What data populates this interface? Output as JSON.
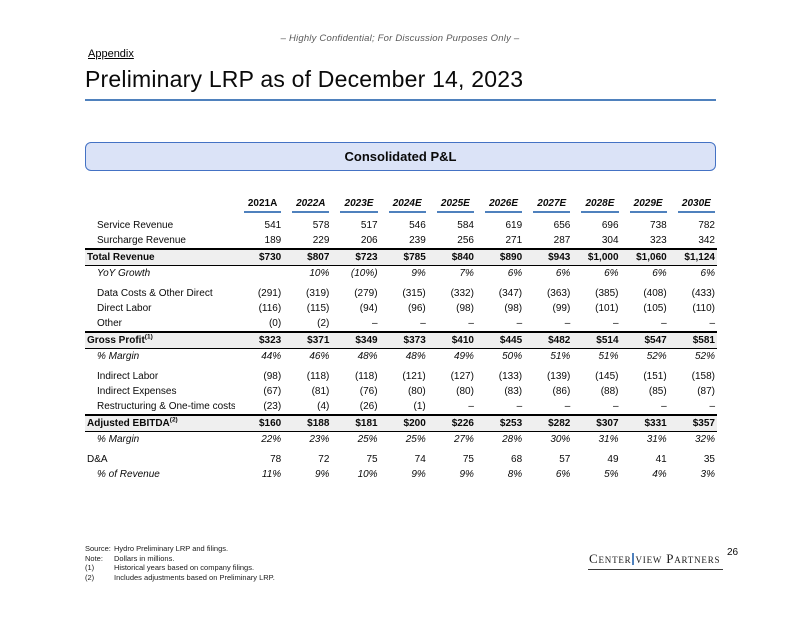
{
  "page": {
    "confidential_note": "– Highly Confidential; For Discussion Purposes Only –",
    "appendix_label": "Appendix",
    "title": "Preliminary LRP as of December 14, 2023",
    "section_box": "Consolidated P&L",
    "page_number": "26",
    "logo_part1": "Center",
    "logo_part2": "view Partners"
  },
  "colors": {
    "accent_blue": "#4f81bd",
    "box_border_blue": "#4472c4",
    "box_fill": "#dbe3f7",
    "total_row_gray": "#efefef"
  },
  "table": {
    "columns": [
      "2021A",
      "2022A",
      "2023E",
      "2024E",
      "2025E",
      "2026E",
      "2027E",
      "2028E",
      "2029E",
      "2030E"
    ],
    "rows": [
      {
        "label": "Service Revenue",
        "style": "normal",
        "indent": true,
        "values": [
          "541",
          "578",
          "517",
          "546",
          "584",
          "619",
          "656",
          "696",
          "738",
          "782"
        ]
      },
      {
        "label": "Surcharge Revenue",
        "style": "normal",
        "indent": true,
        "values": [
          "189",
          "229",
          "206",
          "239",
          "256",
          "271",
          "287",
          "304",
          "323",
          "342"
        ]
      },
      {
        "label": "Total Revenue",
        "style": "total",
        "indent": false,
        "values": [
          "$730",
          "$807",
          "$723",
          "$785",
          "$840",
          "$890",
          "$943",
          "$1,000",
          "$1,060",
          "$1,124"
        ]
      },
      {
        "label": "YoY Growth",
        "style": "italic",
        "indent": true,
        "values": [
          "",
          "10%",
          "(10%)",
          "9%",
          "7%",
          "6%",
          "6%",
          "6%",
          "6%",
          "6%"
        ]
      },
      {
        "spacer": true
      },
      {
        "label": "Data Costs & Other Direct",
        "style": "normal",
        "indent": true,
        "values": [
          "(291)",
          "(319)",
          "(279)",
          "(315)",
          "(332)",
          "(347)",
          "(363)",
          "(385)",
          "(408)",
          "(433)"
        ]
      },
      {
        "label": "Direct Labor",
        "style": "normal",
        "indent": true,
        "values": [
          "(116)",
          "(115)",
          "(94)",
          "(96)",
          "(98)",
          "(98)",
          "(99)",
          "(101)",
          "(105)",
          "(110)"
        ]
      },
      {
        "label": "Other",
        "style": "normal",
        "indent": true,
        "values": [
          "(0)",
          "(2)",
          "–",
          "–",
          "–",
          "–",
          "–",
          "–",
          "–",
          "–"
        ]
      },
      {
        "label": "Gross Profit",
        "sup": "(1)",
        "style": "total",
        "indent": false,
        "values": [
          "$323",
          "$371",
          "$349",
          "$373",
          "$410",
          "$445",
          "$482",
          "$514",
          "$547",
          "$581"
        ]
      },
      {
        "label": "% Margin",
        "style": "italic",
        "indent": true,
        "values": [
          "44%",
          "46%",
          "48%",
          "48%",
          "49%",
          "50%",
          "51%",
          "51%",
          "52%",
          "52%"
        ]
      },
      {
        "spacer": true
      },
      {
        "label": "Indirect Labor",
        "style": "normal",
        "indent": true,
        "values": [
          "(98)",
          "(118)",
          "(118)",
          "(121)",
          "(127)",
          "(133)",
          "(139)",
          "(145)",
          "(151)",
          "(158)"
        ]
      },
      {
        "label": "Indirect Expenses",
        "style": "normal",
        "indent": true,
        "values": [
          "(67)",
          "(81)",
          "(76)",
          "(80)",
          "(80)",
          "(83)",
          "(86)",
          "(88)",
          "(85)",
          "(87)"
        ]
      },
      {
        "label": "Restructuring & One-time costs",
        "style": "normal",
        "indent": true,
        "values": [
          "(23)",
          "(4)",
          "(26)",
          "(1)",
          "–",
          "–",
          "–",
          "–",
          "–",
          "–"
        ]
      },
      {
        "label": "Adjusted EBITDA",
        "sup": "(2)",
        "style": "total",
        "indent": false,
        "values": [
          "$160",
          "$188",
          "$181",
          "$200",
          "$226",
          "$253",
          "$282",
          "$307",
          "$331",
          "$357"
        ]
      },
      {
        "label": "% Margin",
        "style": "italic",
        "indent": true,
        "values": [
          "22%",
          "23%",
          "25%",
          "25%",
          "27%",
          "28%",
          "30%",
          "31%",
          "31%",
          "32%"
        ]
      },
      {
        "spacer": true
      },
      {
        "label": "D&A",
        "style": "normal",
        "indent": false,
        "values": [
          "78",
          "72",
          "75",
          "74",
          "75",
          "68",
          "57",
          "49",
          "41",
          "35"
        ]
      },
      {
        "label": "% of Revenue",
        "style": "italic",
        "indent": true,
        "values": [
          "11%",
          "9%",
          "10%",
          "9%",
          "9%",
          "8%",
          "6%",
          "5%",
          "4%",
          "3%"
        ]
      }
    ]
  },
  "footnotes": [
    {
      "label": "Source:",
      "text": "Hydro Preliminary LRP and filings."
    },
    {
      "label": "Note:",
      "text": "Dollars in millions."
    },
    {
      "label": "(1)",
      "text": "Historical years based on company filings."
    },
    {
      "label": "(2)",
      "text": "Includes adjustments based on Preliminary LRP."
    }
  ]
}
